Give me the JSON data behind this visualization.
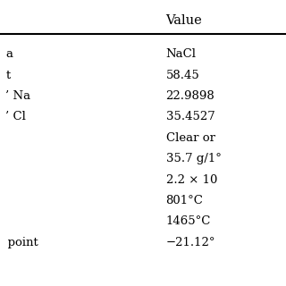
{
  "col_header": "Value",
  "rows": [
    [
      "a",
      "NaCl"
    ],
    [
      "t",
      "58.45"
    ],
    [
      "’ Na",
      "22.9898"
    ],
    [
      "’ Cl",
      "35.4527"
    ],
    [
      "",
      "Clear or"
    ],
    [
      "",
      "35.7 g/1°"
    ],
    [
      "",
      "2.2 × 10"
    ],
    [
      "",
      "801°C"
    ],
    [
      "",
      "1465°C"
    ],
    [
      " point",
      "−21.12°"
    ]
  ],
  "bg_color": "#ffffff",
  "text_color": "#000000",
  "header_line_color": "#000000",
  "font_size": 9.5,
  "header_font_size": 10.5
}
